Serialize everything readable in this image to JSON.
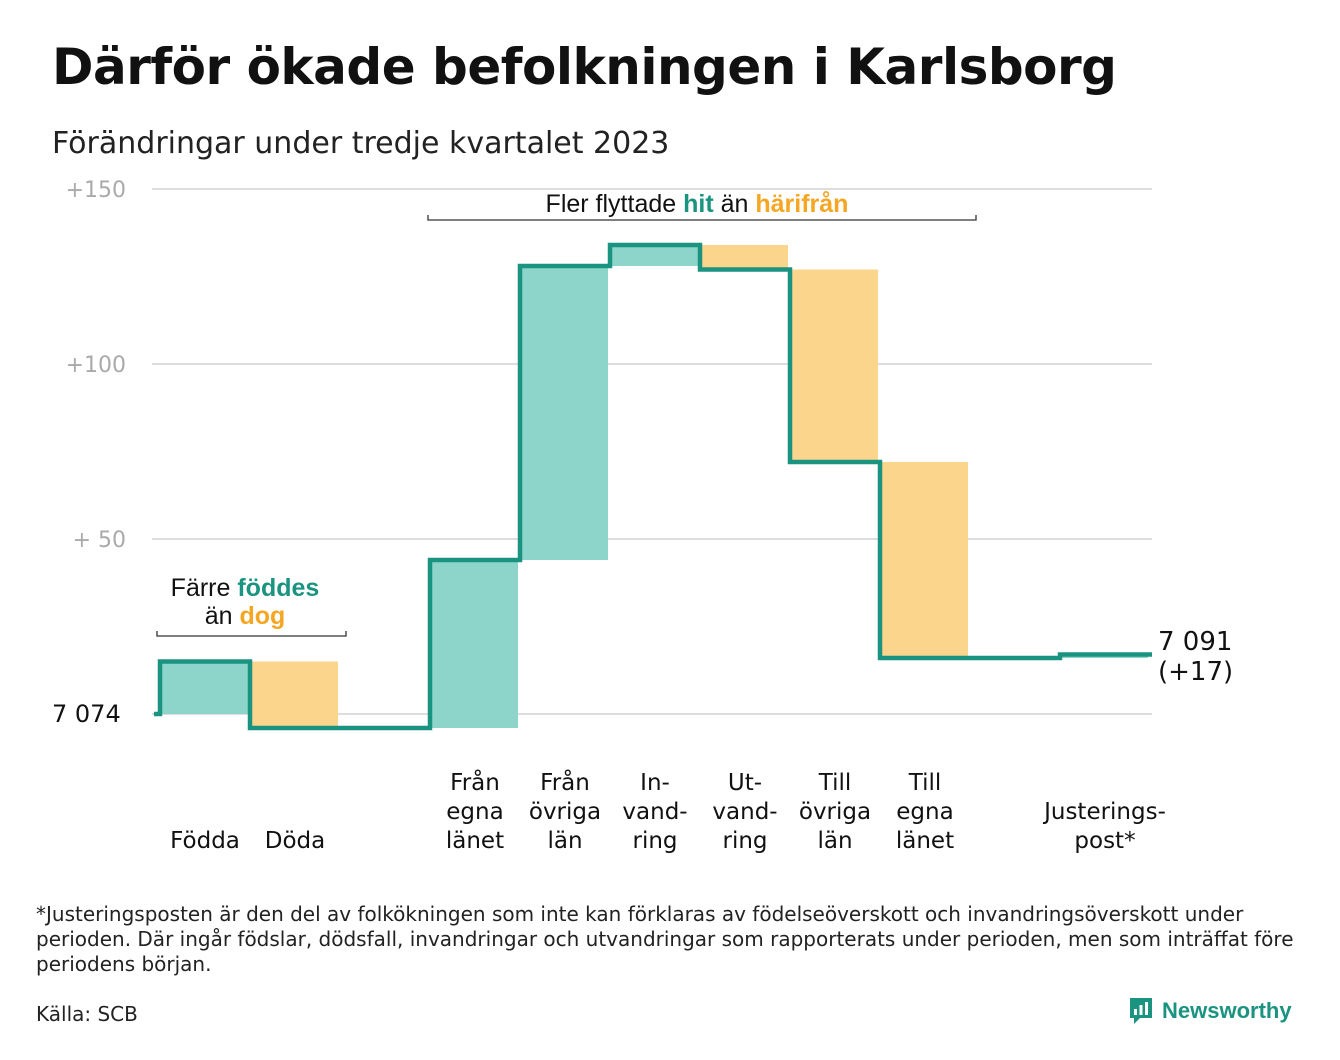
{
  "title": "Därför ökade befolkningen i Karlsborg",
  "subtitle": "Förändringar under tredje kvartalet 2023",
  "footnote": "*Justeringsposten är den del av folkökningen som inte kan förklaras av födelseöverskott och invandringsöverskott under perioden. Där ingår födslar, dödsfall, invandringar och utvandringar som rapporterats under perioden, men som inträffat före periodens början.",
  "source": "Källa: SCB",
  "brand": "Newsworthy",
  "colors": {
    "increase_fill": "#8dd4cb",
    "decrease_fill": "#fbd58c",
    "line": "#1a9380",
    "teal_text": "#1a9380",
    "orange_text": "#f5a623",
    "grid": "#dddddd",
    "tick": "#aaaaaa"
  },
  "chart_data": {
    "type": "waterfall",
    "start_label": "7  074",
    "end_label": [
      "7 091",
      "(+17)"
    ],
    "start_value": 7074,
    "end_value": 7091,
    "total_change": 17,
    "yticks": [
      {
        "value": 150,
        "label": "+150"
      },
      {
        "value": 100,
        "label": "+100"
      },
      {
        "value": 50,
        "label": "+  50"
      }
    ],
    "ylim": [
      -10,
      150
    ],
    "categories": [
      {
        "label": [
          "Födda"
        ],
        "change": 15
      },
      {
        "label": [
          "Döda"
        ],
        "change": -19
      },
      {
        "label": [],
        "change": 0
      },
      {
        "label": [
          "Från",
          "egna",
          "länet"
        ],
        "change": 48
      },
      {
        "label": [
          "Från",
          "övriga",
          "län"
        ],
        "change": 84
      },
      {
        "label": [
          "In-",
          "vand-",
          "ring"
        ],
        "change": 6
      },
      {
        "label": [
          "Ut-",
          "vand-",
          "ring"
        ],
        "change": -7
      },
      {
        "label": [
          "Till",
          "övriga",
          "län"
        ],
        "change": -55
      },
      {
        "label": [
          "Till",
          "egna",
          "länet"
        ],
        "change": -56
      },
      {
        "label": [],
        "change": 0
      },
      {
        "label": [
          "Justerings-",
          "post*"
        ],
        "change": 1
      }
    ],
    "annotations": [
      {
        "parts": [
          {
            "text": "Färre ",
            "color": "dark"
          },
          {
            "text": "föddes",
            "color": "teal"
          }
        ],
        "parts2": [
          {
            "text": "än ",
            "color": "dark"
          },
          {
            "text": "dog",
            "color": "orange"
          }
        ]
      },
      {
        "parts": [
          {
            "text": "Fler flyttade ",
            "color": "dark"
          },
          {
            "text": "hit",
            "color": "teal"
          },
          {
            "text": " än ",
            "color": "dark"
          },
          {
            "text": "härifrån",
            "color": "orange"
          }
        ]
      }
    ]
  }
}
